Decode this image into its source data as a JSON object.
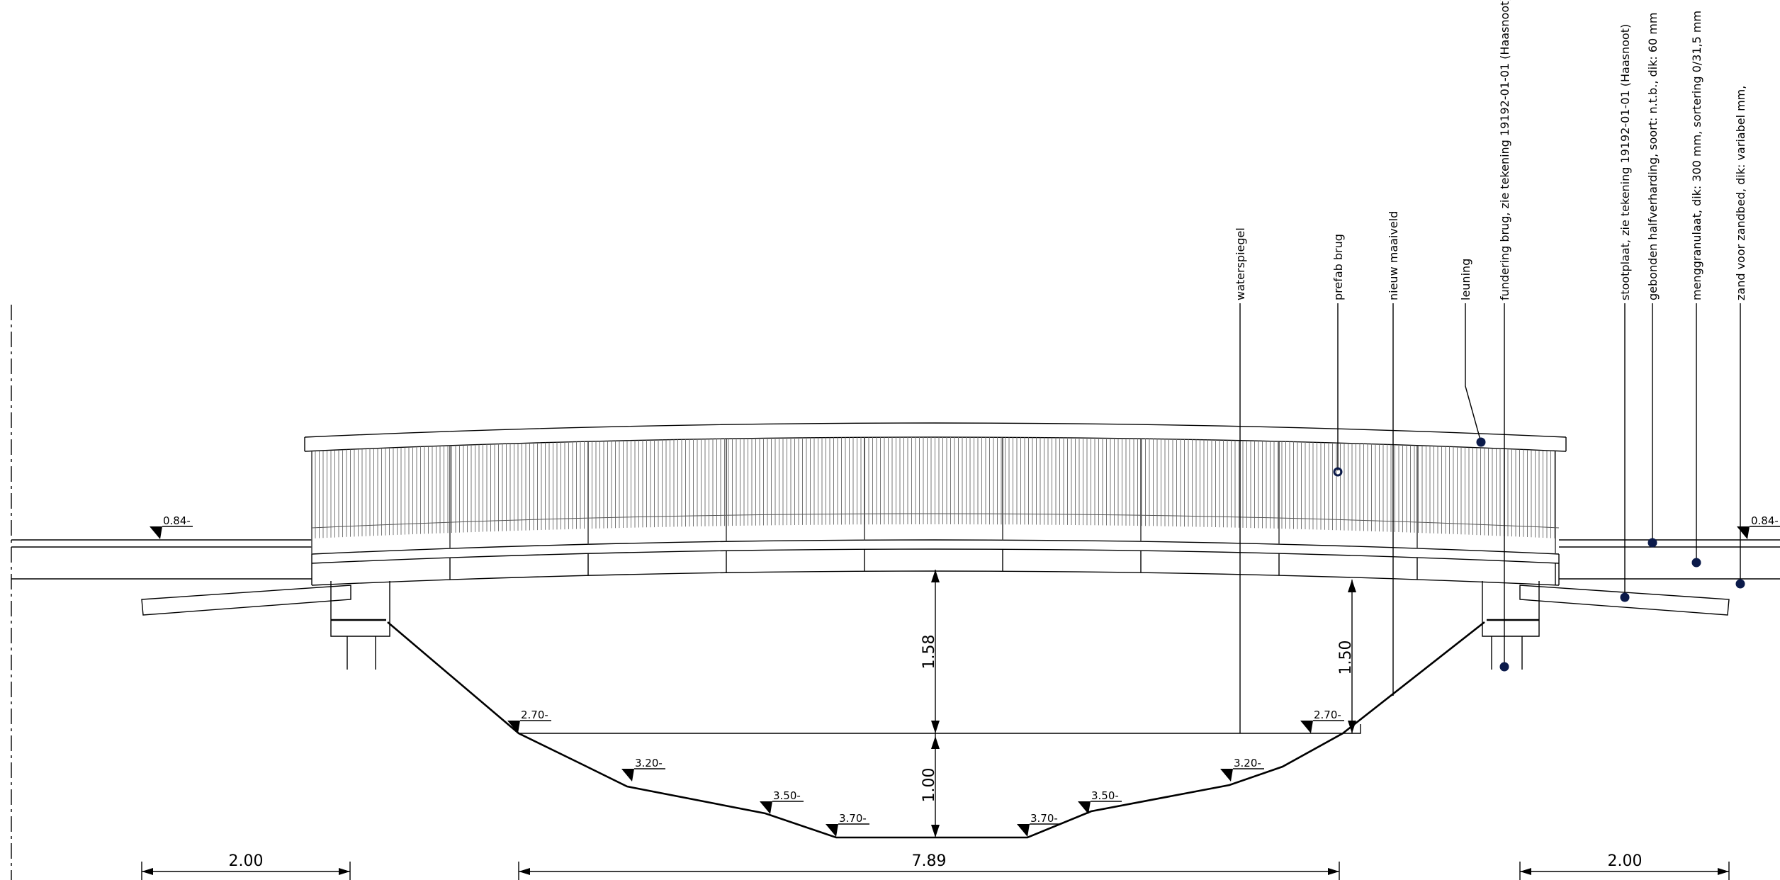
{
  "drawing": {
    "callouts": [
      {
        "id": "waterspiegel",
        "text": "waterspiegel"
      },
      {
        "id": "prefab-brug",
        "text": "prefab brug"
      },
      {
        "id": "nieuw-maaiveld",
        "text": "nieuw maaiveld"
      },
      {
        "id": "leuning",
        "text": "leuning"
      },
      {
        "id": "fundering-brug",
        "text": "fundering brug, zie tekening 19192-01-01 (Haasnoot)"
      },
      {
        "id": "stootplaat",
        "text": "stootplaat, zie tekening 19192-01-01 (Haasnoot)"
      },
      {
        "id": "halfverharding",
        "text": "gebonden halfverharding, soort: n.t.b., dik: 60 mm"
      },
      {
        "id": "menggranulaat",
        "text": "menggranulaat, dik: 300 mm, sortering 0/31,5 mm"
      },
      {
        "id": "zandbed",
        "text": "zand voor zandbed, dik: variabel mm,"
      }
    ],
    "levels": {
      "road_left": "0.84-",
      "road_right": "0.84-",
      "water_left": "2.70-",
      "water_right": "2.70-",
      "slope_left_upper": "3.20-",
      "slope_right_upper": "3.20-",
      "slope_left_lower": "3.50-",
      "slope_right_lower": "3.50-",
      "bottom_left": "3.70-",
      "bottom_right": "3.70-"
    },
    "dimensions": {
      "clearance_mid": "1.58",
      "clearance_right": "1.50",
      "water_depth": "1.00",
      "ramp_left": "2.00",
      "channel_width": "7.89",
      "ramp_right": "2.00"
    },
    "colors": {
      "line": "#000000",
      "callout_dot": "#0b1a4a"
    }
  }
}
